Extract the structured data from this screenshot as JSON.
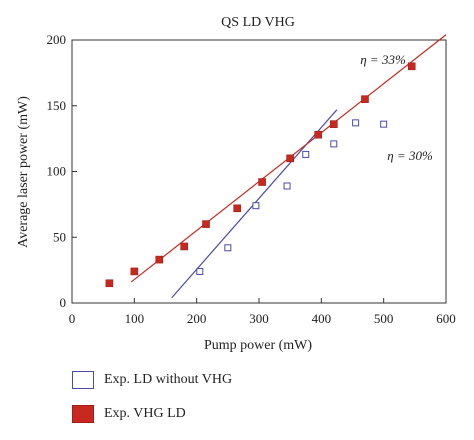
{
  "chart_data": {
    "type": "scatter",
    "title": "QS LD VHG",
    "xlabel": "Pump power (mW)",
    "ylabel": "Average laser power (mW)",
    "xlim": [
      0,
      600
    ],
    "ylim": [
      0,
      200
    ],
    "x_ticks": [
      "0",
      "100",
      "200",
      "300",
      "400",
      "500",
      "600"
    ],
    "y_ticks": [
      "0",
      "50",
      "100",
      "150",
      "200"
    ],
    "grid": false,
    "legend_position": "bottom",
    "series": [
      {
        "name": "Exp. LD without VHG",
        "marker": "hollow-square",
        "color": "#4b4ba6",
        "points": [
          [
            205,
            24
          ],
          [
            250,
            42
          ],
          [
            295,
            74
          ],
          [
            345,
            89
          ],
          [
            375,
            113
          ],
          [
            420,
            121
          ],
          [
            455,
            137
          ],
          [
            500,
            136
          ]
        ],
        "fit_line": [
          [
            160,
            4
          ],
          [
            425,
            147
          ]
        ],
        "annotation": "η = 30%"
      },
      {
        "name": "Exp. VHG LD",
        "marker": "filled-square",
        "color": "#c8281e",
        "points": [
          [
            60,
            15
          ],
          [
            100,
            24
          ],
          [
            140,
            33
          ],
          [
            180,
            43
          ],
          [
            215,
            60
          ],
          [
            265,
            72
          ],
          [
            305,
            92
          ],
          [
            350,
            110
          ],
          [
            395,
            128
          ],
          [
            420,
            136
          ],
          [
            470,
            155
          ],
          [
            545,
            180
          ]
        ],
        "fit_line": [
          [
            95,
            16
          ],
          [
            600,
            204
          ]
        ],
        "annotation": "η = 33%"
      }
    ]
  }
}
